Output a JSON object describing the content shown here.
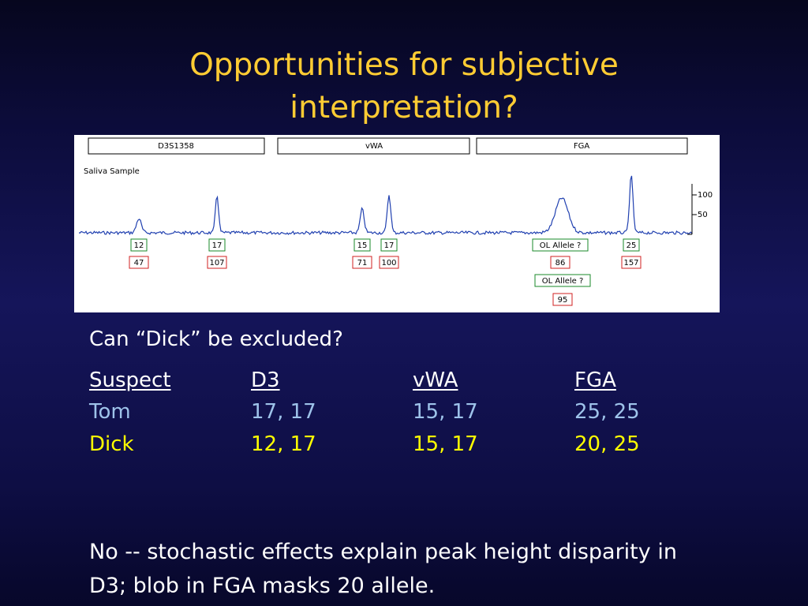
{
  "title": "Opportunities for subjective interpretation?",
  "electropherogram": {
    "loci": [
      "D3S1358",
      "vWA",
      "FGA"
    ],
    "sample_label": "Saliva Sample",
    "scale_labels": [
      "100",
      "50"
    ],
    "peaks": [
      {
        "allele": "12",
        "height": "47"
      },
      {
        "allele": "17",
        "height": "107"
      },
      {
        "allele": "15",
        "height": "71"
      },
      {
        "allele": "17",
        "height": "100"
      },
      {
        "allele": "OL Allele ?",
        "height": "86"
      },
      {
        "allele": "25",
        "height": "157"
      },
      {
        "allele": "OL Allele ?",
        "height": "95"
      }
    ]
  },
  "question": "Can “Dick” be excluded?",
  "table": {
    "header": [
      "Suspect",
      "D3",
      "vWA",
      "FGA"
    ],
    "rows": [
      [
        "Tom",
        "17, 17",
        "15, 17",
        "25, 25"
      ],
      [
        "Dick",
        "12, 17",
        "15, 17",
        "20, 25"
      ]
    ]
  },
  "conclusion": "No -- stochastic effects explain peak height disparity in D3; blob in FGA masks 20 allele."
}
